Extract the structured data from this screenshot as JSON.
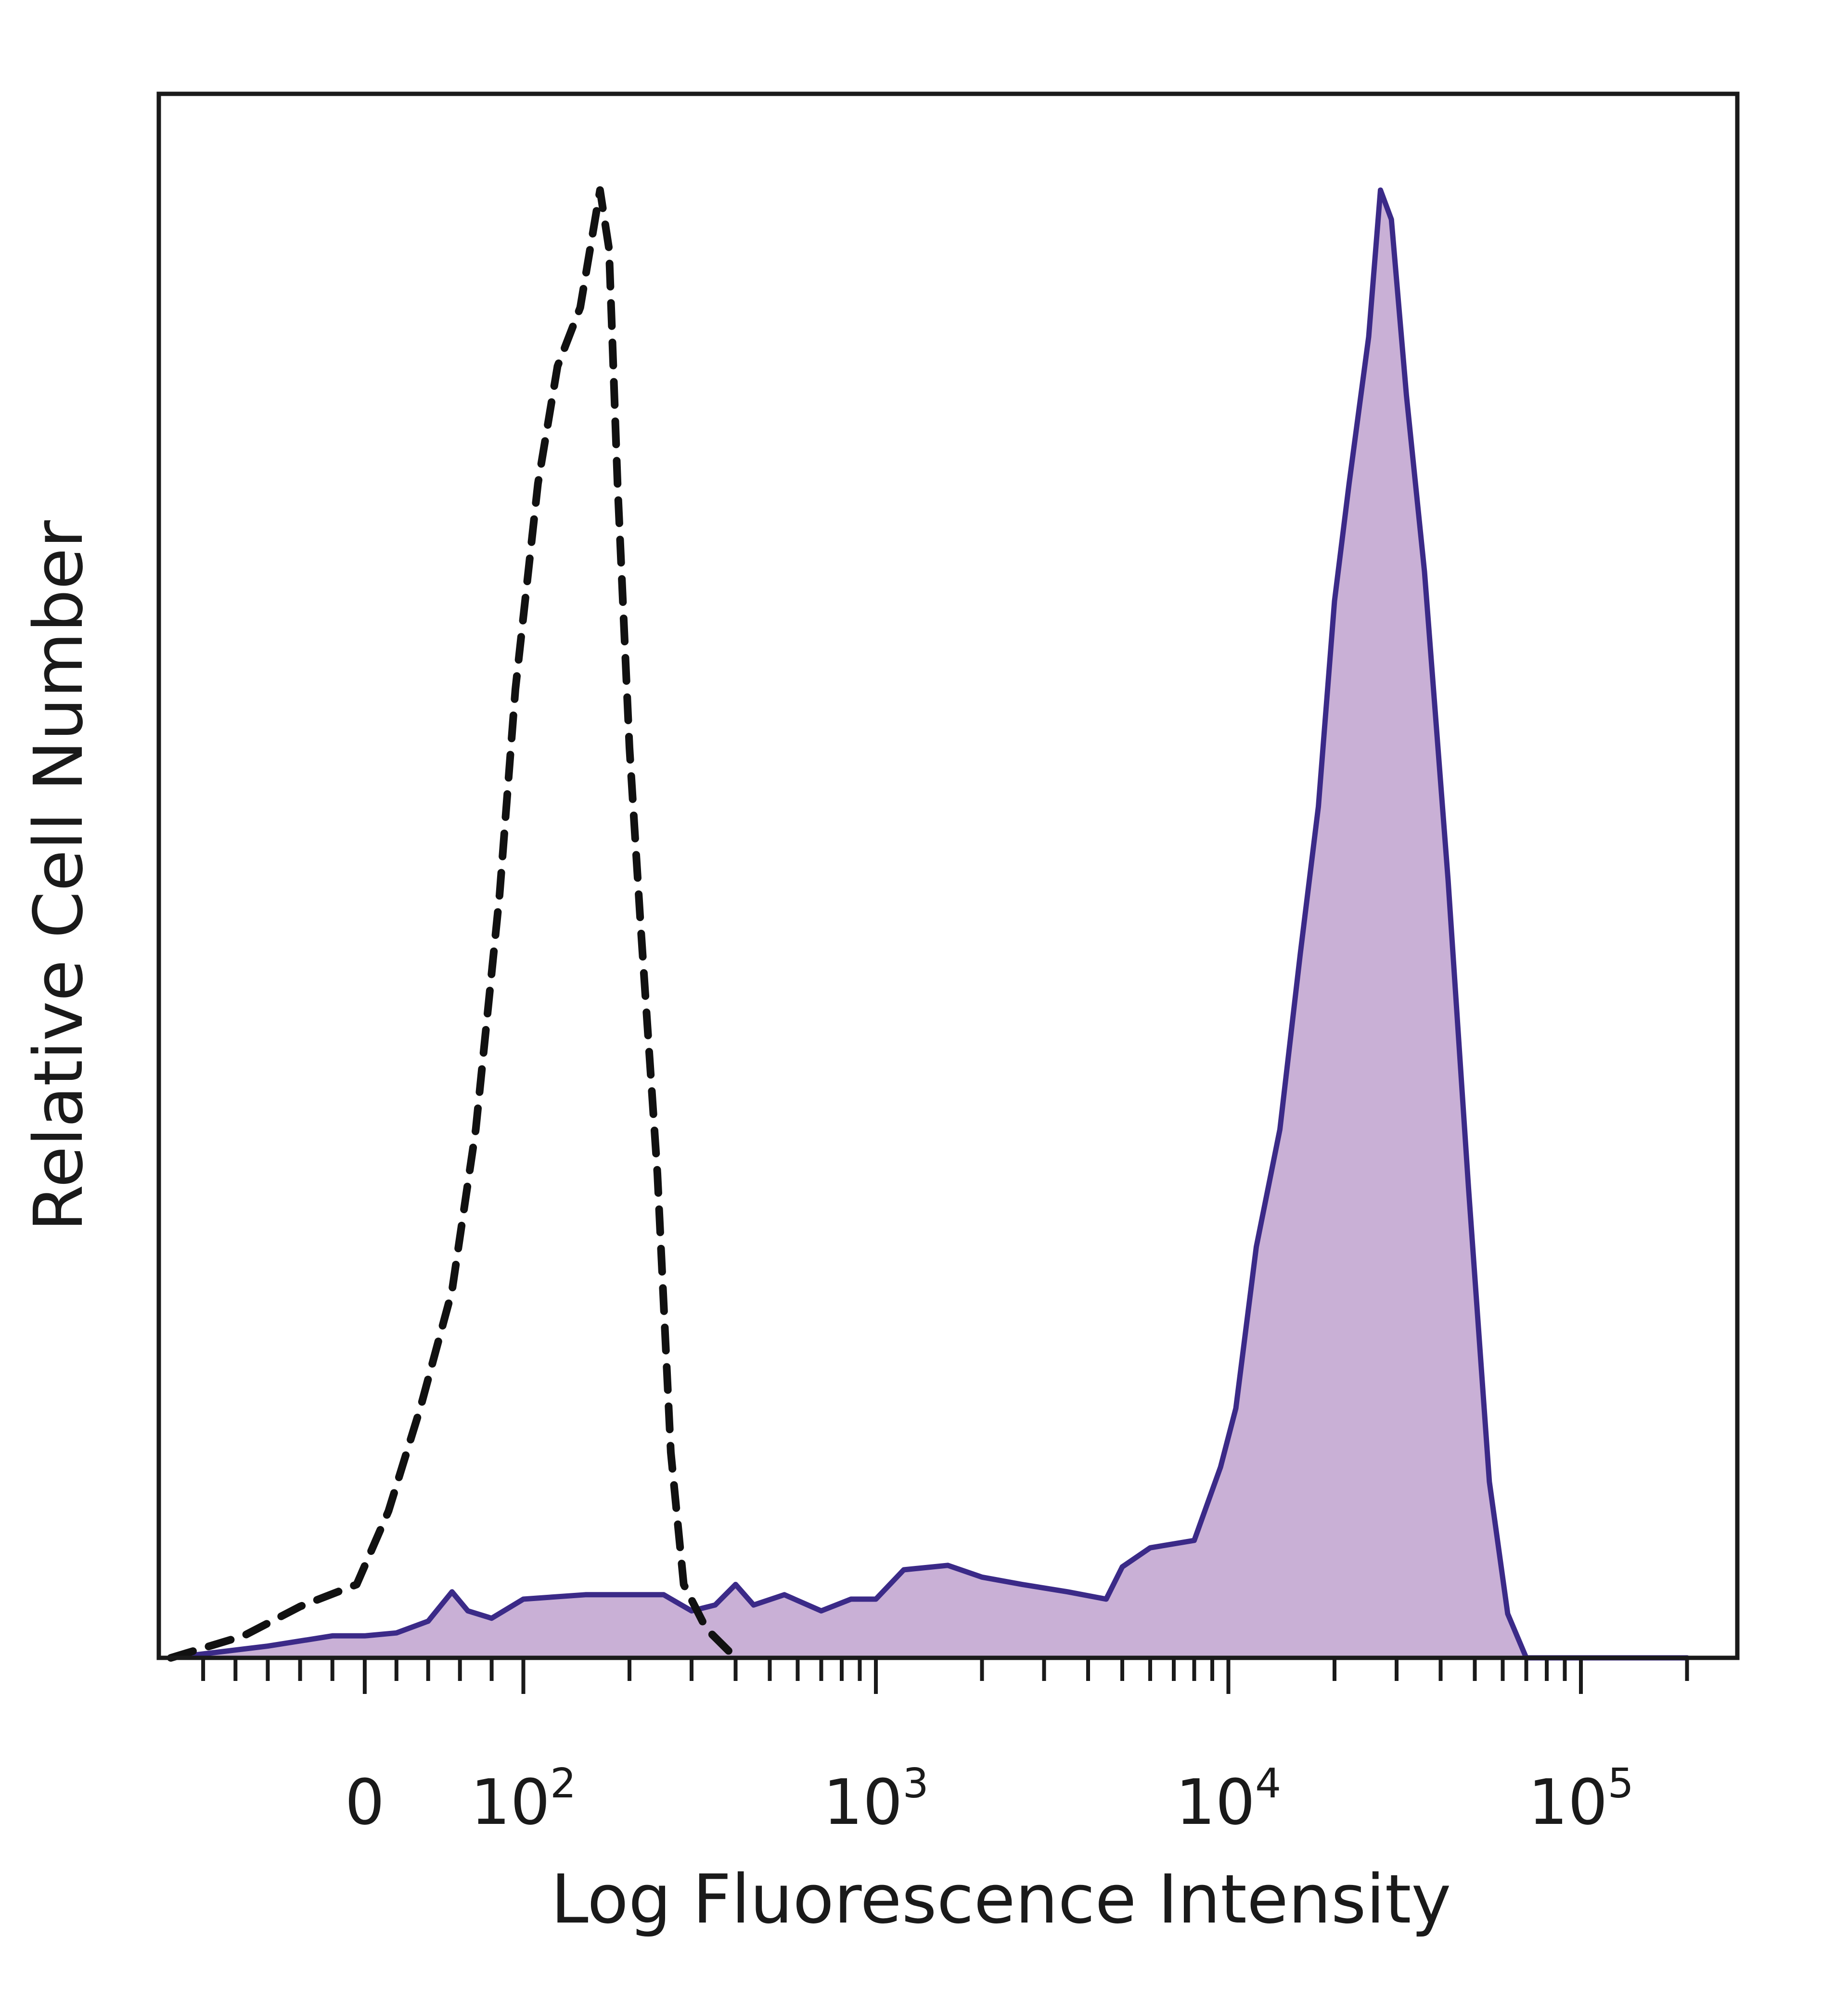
{
  "chart_data": {
    "type": "area",
    "xlabel": "Log Fluorescence Intensity",
    "ylabel": "Relative Cell Number",
    "x_scale": "logicle",
    "x_tick_labels": [
      {
        "value": 0,
        "text": "0"
      },
      {
        "value": 100,
        "base": "10",
        "exp": "2"
      },
      {
        "value": 1000,
        "base": "10",
        "exp": "3"
      },
      {
        "value": 10000,
        "base": "10",
        "exp": "4"
      },
      {
        "value": 100000,
        "base": "10",
        "exp": "5"
      }
    ],
    "ylim": [
      0,
      100
    ],
    "grid": false,
    "legend": "none",
    "series": [
      {
        "style": "dashed",
        "color": "#111111",
        "fill": "none",
        "points": [
          [
            -240,
            0
          ],
          [
            -150,
            1.5
          ],
          [
            -80,
            3.5
          ],
          [
            -10,
            5
          ],
          [
            15,
            10
          ],
          [
            35,
            17
          ],
          [
            55,
            25
          ],
          [
            70,
            36
          ],
          [
            85,
            52
          ],
          [
            95,
            66
          ],
          [
            110,
            80
          ],
          [
            125,
            88
          ],
          [
            145,
            92
          ],
          [
            165,
            100
          ],
          [
            175,
            96
          ],
          [
            185,
            80
          ],
          [
            200,
            62
          ],
          [
            215,
            50
          ],
          [
            240,
            33
          ],
          [
            262,
            14
          ],
          [
            285,
            5
          ],
          [
            330,
            2
          ],
          [
            400,
            0
          ]
        ]
      },
      {
        "style": "solid",
        "color": "#3b2a88",
        "fill": "#c9b0d6",
        "points": [
          [
            -240,
            0
          ],
          [
            -120,
            0.8
          ],
          [
            -40,
            1.5
          ],
          [
            0,
            1.5
          ],
          [
            20,
            1.7
          ],
          [
            40,
            2.5
          ],
          [
            55,
            4.5
          ],
          [
            65,
            3.2
          ],
          [
            80,
            2.7
          ],
          [
            100,
            4
          ],
          [
            150,
            4.3
          ],
          [
            250,
            4.3
          ],
          [
            300,
            3.2
          ],
          [
            350,
            3.6
          ],
          [
            400,
            5
          ],
          [
            450,
            3.6
          ],
          [
            550,
            4.3
          ],
          [
            700,
            3.2
          ],
          [
            850,
            4
          ],
          [
            1000,
            4
          ],
          [
            1200,
            6
          ],
          [
            1600,
            6.3
          ],
          [
            2000,
            5.5
          ],
          [
            2600,
            5
          ],
          [
            3500,
            4.5
          ],
          [
            4500,
            4
          ],
          [
            5000,
            6.2
          ],
          [
            6000,
            7.5
          ],
          [
            8000,
            8
          ],
          [
            9500,
            13
          ],
          [
            10500,
            17
          ],
          [
            12000,
            28
          ],
          [
            14000,
            36
          ],
          [
            16000,
            48
          ],
          [
            18000,
            58
          ],
          [
            20000,
            72
          ],
          [
            22000,
            80
          ],
          [
            25000,
            90
          ],
          [
            27000,
            100
          ],
          [
            29000,
            98
          ],
          [
            32000,
            86
          ],
          [
            36000,
            74
          ],
          [
            42000,
            53
          ],
          [
            48000,
            32
          ],
          [
            55000,
            12
          ],
          [
            62000,
            3
          ],
          [
            70000,
            0
          ],
          [
            200000,
            0
          ]
        ]
      }
    ]
  }
}
